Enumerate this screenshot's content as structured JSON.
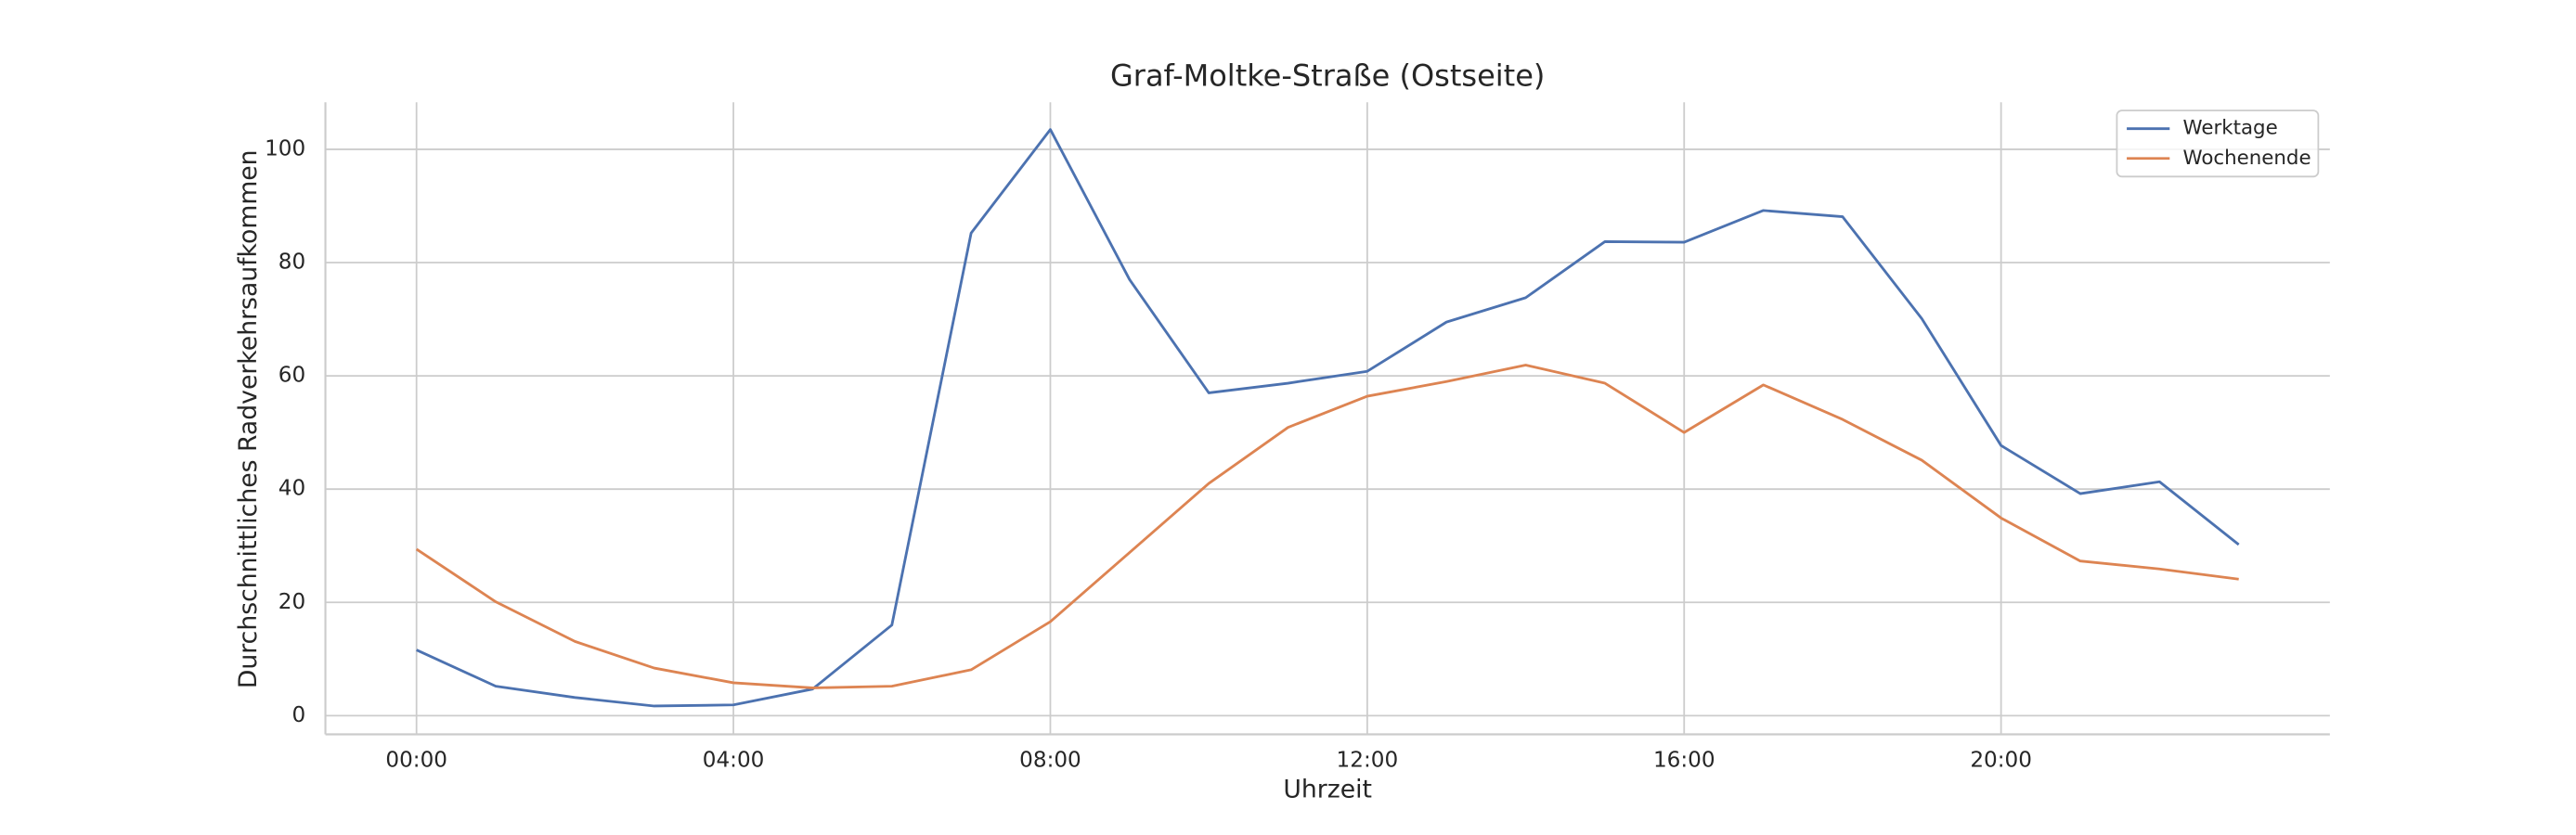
{
  "chart_data": {
    "type": "line",
    "title": "Graf-Moltke-Straße (Ostseite)",
    "xlabel": "Uhrzeit",
    "ylabel": "Durchschnittliches Radverkehrsaufkommen",
    "x": [
      0,
      1,
      2,
      3,
      4,
      5,
      6,
      7,
      8,
      9,
      10,
      11,
      12,
      13,
      14,
      15,
      16,
      17,
      18,
      19,
      20,
      21,
      22,
      23
    ],
    "series": [
      {
        "name": "Werktage",
        "color": "#4c72b0",
        "values": [
          11.6,
          5.2,
          3.2,
          1.7,
          1.9,
          4.7,
          16.0,
          85.2,
          103.5,
          77.0,
          57.0,
          58.7,
          60.8,
          69.5,
          73.8,
          83.7,
          83.6,
          89.2,
          88.1,
          70.1,
          47.7,
          39.2,
          41.3,
          30.2
        ]
      },
      {
        "name": "Wochenende",
        "color": "#dd8452",
        "values": [
          29.4,
          20.1,
          13.1,
          8.4,
          5.8,
          4.9,
          5.2,
          8.1,
          16.6,
          28.8,
          41.0,
          50.9,
          56.4,
          59.0,
          61.9,
          58.7,
          50.0,
          58.4,
          52.3,
          45.1,
          34.9,
          27.3,
          25.9,
          24.1
        ]
      }
    ],
    "xlim": [
      -1.15,
      24.15
    ],
    "ylim": [
      -3.3,
      108.3
    ],
    "xticks": [
      {
        "value": 0,
        "label": "00:00"
      },
      {
        "value": 4,
        "label": "04:00"
      },
      {
        "value": 8,
        "label": "08:00"
      },
      {
        "value": 12,
        "label": "12:00"
      },
      {
        "value": 16,
        "label": "16:00"
      },
      {
        "value": 20,
        "label": "20:00"
      }
    ],
    "yticks": [
      0,
      20,
      40,
      60,
      80,
      100
    ],
    "grid": true,
    "legend": "upper-right"
  }
}
